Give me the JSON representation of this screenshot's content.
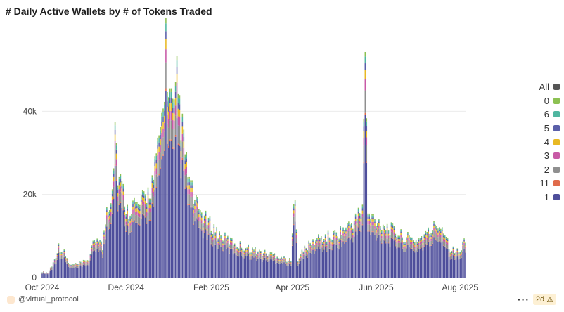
{
  "title": "# Daily Active Wallets by # of Tokens Traded",
  "footer": {
    "author": "@virtual_protocol",
    "more_label": "···",
    "age_label": "2d",
    "warning_icon": "warning-triangle-icon"
  },
  "legend": [
    {
      "label": "All",
      "color": "#555555"
    },
    {
      "label": "0",
      "color": "#8cc152"
    },
    {
      "label": "6",
      "color": "#4fb6a0"
    },
    {
      "label": "5",
      "color": "#5a5fa9"
    },
    {
      "label": "4",
      "color": "#e8b923"
    },
    {
      "label": "3",
      "color": "#c85aa6"
    },
    {
      "label": "2",
      "color": "#8f8f8f"
    },
    {
      "label": "11",
      "color": "#e06b4b"
    },
    {
      "label": "1",
      "color": "#4e4e9b"
    }
  ],
  "chart_data": {
    "type": "bar",
    "stacked": true,
    "title": "# Daily Active Wallets by # of Tokens Traded",
    "x_range": [
      "2024-10-01",
      "2025-08-05"
    ],
    "x_ticks": [
      {
        "date": "2024-10-01",
        "label": "Oct 2024"
      },
      {
        "date": "2024-12-01",
        "label": "Dec 2024"
      },
      {
        "date": "2025-02-01",
        "label": "Feb 2025"
      },
      {
        "date": "2025-04-01",
        "label": "Apr 2025"
      },
      {
        "date": "2025-06-01",
        "label": "Jun 2025"
      },
      {
        "date": "2025-08-01",
        "label": "Aug 2025"
      }
    ],
    "y_ticks": [
      {
        "value": 0,
        "label": "0"
      },
      {
        "value": 20000,
        "label": "20k"
      },
      {
        "value": 40000,
        "label": "40k"
      }
    ],
    "ylim": [
      0,
      60000
    ],
    "grid": true,
    "legend_position": "right",
    "stack_colors": [
      "#4e4e9b",
      "#e06b4b",
      "#8f8f8f",
      "#c85aa6",
      "#e8b923",
      "#5a5fa9",
      "#4fb6a0",
      "#8cc152"
    ],
    "stack_shares": [
      0.72,
      0.01,
      0.1,
      0.05,
      0.04,
      0.03,
      0.03,
      0.02
    ],
    "series_total_anchors": [
      [
        "2024-10-01",
        1500
      ],
      [
        "2024-10-05",
        1200
      ],
      [
        "2024-10-09",
        3500
      ],
      [
        "2024-10-13",
        7500
      ],
      [
        "2024-10-17",
        6000
      ],
      [
        "2024-10-21",
        3000
      ],
      [
        "2024-10-25",
        3200
      ],
      [
        "2024-10-30",
        3500
      ],
      [
        "2024-11-04",
        4500
      ],
      [
        "2024-11-08",
        9000
      ],
      [
        "2024-11-11",
        10000
      ],
      [
        "2024-11-14",
        7000
      ],
      [
        "2024-11-17",
        17000
      ],
      [
        "2024-11-20",
        19000
      ],
      [
        "2024-11-22",
        29000
      ],
      [
        "2024-11-23",
        38000
      ],
      [
        "2024-11-25",
        25000
      ],
      [
        "2024-11-28",
        22000
      ],
      [
        "2024-12-02",
        16000
      ],
      [
        "2024-12-06",
        18000
      ],
      [
        "2024-12-10",
        17000
      ],
      [
        "2024-12-14",
        19000
      ],
      [
        "2024-12-18",
        21000
      ],
      [
        "2024-12-21",
        24000
      ],
      [
        "2024-12-24",
        30000
      ],
      [
        "2024-12-26",
        36000
      ],
      [
        "2024-12-28",
        40000
      ],
      [
        "2024-12-30",
        57000
      ],
      [
        "2025-01-01",
        43000
      ],
      [
        "2025-01-03",
        42000
      ],
      [
        "2025-01-05",
        38000
      ],
      [
        "2025-01-07",
        47000
      ],
      [
        "2025-01-09",
        41000
      ],
      [
        "2025-01-11",
        35000
      ],
      [
        "2025-01-14",
        27000
      ],
      [
        "2025-01-17",
        22000
      ],
      [
        "2025-01-20",
        18000
      ],
      [
        "2025-01-24",
        16000
      ],
      [
        "2025-01-28",
        14000
      ],
      [
        "2025-02-03",
        12000
      ],
      [
        "2025-02-08",
        10000
      ],
      [
        "2025-02-14",
        9000
      ],
      [
        "2025-02-20",
        8000
      ],
      [
        "2025-03-01",
        7000
      ],
      [
        "2025-03-10",
        6000
      ],
      [
        "2025-03-20",
        5500
      ],
      [
        "2025-03-31",
        4000
      ],
      [
        "2025-04-03",
        22000
      ],
      [
        "2025-04-05",
        4500
      ],
      [
        "2025-04-10",
        7000
      ],
      [
        "2025-04-20",
        9500
      ],
      [
        "2025-04-30",
        10000
      ],
      [
        "2025-05-10",
        12000
      ],
      [
        "2025-05-17",
        14000
      ],
      [
        "2025-05-22",
        17000
      ],
      [
        "2025-05-24",
        56000
      ],
      [
        "2025-05-26",
        15000
      ],
      [
        "2025-06-01",
        14000
      ],
      [
        "2025-06-10",
        12000
      ],
      [
        "2025-06-20",
        10000
      ],
      [
        "2025-06-30",
        9000
      ],
      [
        "2025-07-10",
        11000
      ],
      [
        "2025-07-15",
        13000
      ],
      [
        "2025-07-20",
        12000
      ],
      [
        "2025-07-25",
        7000
      ],
      [
        "2025-08-01",
        6000
      ],
      [
        "2025-08-04",
        9000
      ]
    ]
  }
}
